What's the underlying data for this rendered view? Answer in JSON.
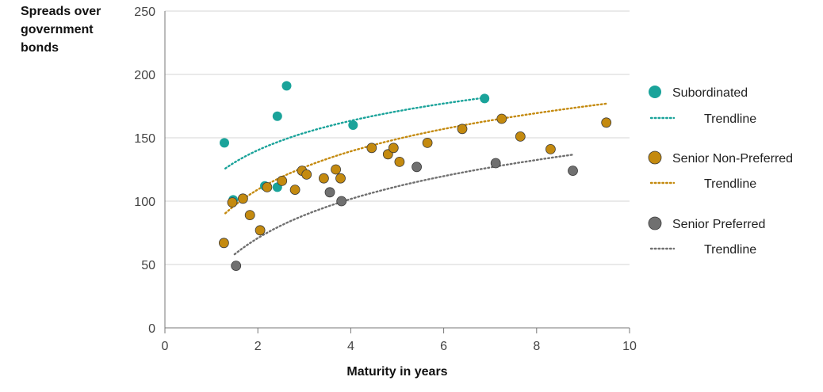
{
  "chart_data": {
    "type": "scatter",
    "ylabel_lines": [
      "Spreads over",
      "government",
      "bonds"
    ],
    "xlabel": "Maturity in years",
    "xlim": [
      0,
      10
    ],
    "ylim": [
      0,
      250
    ],
    "xticks": [
      "0",
      "2",
      "4",
      "6",
      "8",
      "10"
    ],
    "yticks": [
      "0",
      "50",
      "100",
      "150",
      "200",
      "250"
    ],
    "grid": "horizontal",
    "legend_position": "right",
    "series": [
      {
        "name": "Subordinated",
        "color": "#1aa39a",
        "points": [
          [
            1.28,
            146
          ],
          [
            1.47,
            101
          ],
          [
            2.15,
            112
          ],
          [
            2.42,
            111
          ],
          [
            2.42,
            167
          ],
          [
            2.62,
            191
          ],
          [
            4.05,
            160
          ],
          [
            6.88,
            181
          ]
        ],
        "trendline": {
          "name": "Trendline",
          "x_from": 1.3,
          "x_to": 6.85,
          "a": 117,
          "b": 33.5
        }
      },
      {
        "name": "Senior Non-Preferred",
        "color": "#c48a0f",
        "points": [
          [
            1.27,
            67
          ],
          [
            1.45,
            99
          ],
          [
            1.68,
            102
          ],
          [
            1.83,
            89
          ],
          [
            2.05,
            77
          ],
          [
            2.2,
            111
          ],
          [
            2.52,
            116
          ],
          [
            2.8,
            109
          ],
          [
            2.95,
            124
          ],
          [
            3.05,
            121
          ],
          [
            3.42,
            118
          ],
          [
            3.68,
            125
          ],
          [
            3.78,
            118
          ],
          [
            4.45,
            142
          ],
          [
            4.8,
            137
          ],
          [
            4.92,
            142
          ],
          [
            5.05,
            131
          ],
          [
            5.65,
            146
          ],
          [
            6.4,
            157
          ],
          [
            7.25,
            165
          ],
          [
            7.65,
            151
          ],
          [
            8.3,
            141
          ],
          [
            9.5,
            162
          ]
        ],
        "trendline": {
          "name": "Trendline",
          "x_from": 1.3,
          "x_to": 9.5,
          "a": 79,
          "b": 43.5
        }
      },
      {
        "name": "Senior Preferred",
        "color": "#707070",
        "points": [
          [
            1.53,
            49
          ],
          [
            3.55,
            107
          ],
          [
            3.8,
            100
          ],
          [
            5.42,
            127
          ],
          [
            7.12,
            130
          ],
          [
            8.78,
            124
          ]
        ],
        "trendline": {
          "name": "Trendline",
          "x_from": 1.5,
          "x_to": 8.78,
          "a": 40,
          "b": 44.5
        }
      }
    ]
  }
}
